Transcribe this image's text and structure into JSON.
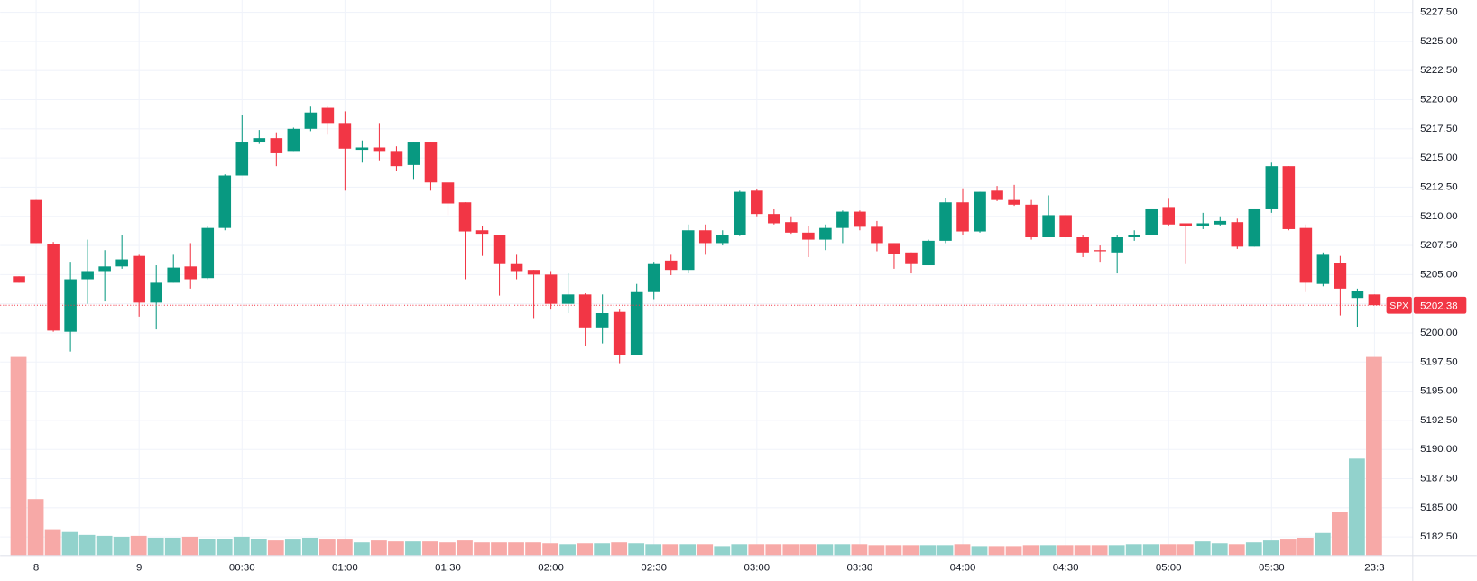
{
  "chart_data": {
    "type": "candlestick",
    "categories": [
      null,
      "8",
      null,
      null,
      null,
      null,
      null,
      "9",
      null,
      null,
      null,
      null,
      null,
      "00:30",
      null,
      null,
      null,
      null,
      null,
      "01:00",
      null,
      null,
      null,
      null,
      null,
      "01:30",
      null,
      null,
      null,
      null,
      null,
      "02:00",
      null,
      null,
      null,
      null,
      null,
      "02:30",
      null,
      null,
      null,
      null,
      null,
      "03:00",
      null,
      null,
      null,
      null,
      null,
      "03:30",
      null,
      null,
      null,
      null,
      null,
      "04:00",
      null,
      null,
      null,
      null,
      null,
      "04:30",
      null,
      null,
      null,
      null,
      null,
      "05:00",
      null,
      null,
      null,
      null,
      null,
      "05:30",
      null,
      null,
      null,
      null,
      null,
      "23:3"
    ],
    "open": [
      5204.85,
      5211.4,
      5207.6,
      5200.1,
      5204.6,
      5205.3,
      5205.7,
      5206.6,
      5202.6,
      5204.3,
      5205.7,
      5204.7,
      5209.0,
      5213.5,
      5216.4,
      5216.7,
      5215.6,
      5217.5,
      5219.3,
      5218.0,
      5215.7,
      5215.9,
      5215.6,
      5214.4,
      5216.4,
      5212.9,
      5211.2,
      5208.8,
      5208.4,
      5205.9,
      5205.4,
      5205.0,
      5202.5,
      5203.3,
      5200.4,
      5201.8,
      5198.1,
      5203.5,
      5206.2,
      5205.4,
      5208.8,
      5207.7,
      5208.4,
      5212.2,
      5210.2,
      5209.5,
      5208.6,
      5208.0,
      5209.0,
      5210.4,
      5209.1,
      5207.7,
      5206.9,
      5205.8,
      5207.9,
      5211.2,
      5208.7,
      5212.2,
      5211.4,
      5211.0,
      5208.2,
      5210.1,
      5208.2,
      5207.1,
      5206.9,
      5208.2,
      5208.4,
      5210.8,
      5209.4,
      5209.2,
      5209.3,
      5209.5,
      5207.4,
      5210.6,
      5214.3,
      5209.0,
      5204.2,
      5206.0,
      5203.0,
      5203.3
    ],
    "high": [
      5204.85,
      5211.4,
      5207.8,
      5206.1,
      5208.0,
      5207.1,
      5208.4,
      5206.7,
      5205.8,
      5206.7,
      5207.7,
      5209.2,
      5213.6,
      5218.7,
      5217.4,
      5217.2,
      5217.6,
      5219.4,
      5219.5,
      5219.0,
      5216.5,
      5218.0,
      5216.0,
      5216.4,
      5216.4,
      5212.9,
      5211.2,
      5209.2,
      5208.4,
      5206.7,
      5205.4,
      5205.3,
      5205.1,
      5203.4,
      5203.3,
      5202.0,
      5204.2,
      5206.1,
      5206.7,
      5209.3,
      5209.3,
      5208.8,
      5212.2,
      5212.3,
      5210.6,
      5210.0,
      5209.2,
      5209.3,
      5210.5,
      5210.5,
      5209.6,
      5207.7,
      5206.9,
      5208.0,
      5211.6,
      5212.4,
      5212.1,
      5212.6,
      5212.7,
      5211.4,
      5211.8,
      5210.1,
      5208.4,
      5207.5,
      5208.4,
      5208.8,
      5210.6,
      5211.5,
      5209.4,
      5210.3,
      5210.0,
      5209.8,
      5210.6,
      5214.6,
      5214.3,
      5209.3,
      5206.9,
      5206.6,
      5203.8,
      5203.3
    ],
    "low": [
      5204.3,
      5207.7,
      5200.1,
      5198.4,
      5202.5,
      5202.7,
      5205.5,
      5201.4,
      5200.3,
      5204.3,
      5203.8,
      5204.6,
      5208.8,
      5213.5,
      5216.2,
      5214.3,
      5215.6,
      5217.3,
      5217.0,
      5212.2,
      5214.6,
      5214.8,
      5213.9,
      5213.2,
      5212.2,
      5210.1,
      5204.6,
      5206.6,
      5203.2,
      5204.6,
      5201.2,
      5202.0,
      5201.7,
      5198.9,
      5199.1,
      5197.4,
      5198.1,
      5202.9,
      5204.95,
      5205.1,
      5206.7,
      5207.5,
      5208.3,
      5210.0,
      5209.3,
      5208.5,
      5206.5,
      5207.1,
      5207.7,
      5208.8,
      5207.0,
      5205.5,
      5205.1,
      5205.8,
      5207.7,
      5208.4,
      5208.6,
      5211.3,
      5210.9,
      5208.0,
      5208.2,
      5208.2,
      5206.5,
      5206.1,
      5205.1,
      5207.9,
      5208.4,
      5209.2,
      5205.9,
      5208.9,
      5209.2,
      5207.2,
      5207.4,
      5210.3,
      5208.8,
      5203.5,
      5204.0,
      5201.5,
      5200.5,
      5202.38
    ],
    "close": [
      5204.3,
      5207.7,
      5200.2,
      5204.6,
      5205.3,
      5205.7,
      5206.3,
      5202.6,
      5204.3,
      5205.6,
      5204.6,
      5209.0,
      5213.5,
      5216.4,
      5216.7,
      5215.4,
      5217.5,
      5218.9,
      5218.0,
      5215.8,
      5215.9,
      5215.6,
      5214.3,
      5216.4,
      5212.9,
      5211.1,
      5208.7,
      5208.5,
      5205.9,
      5205.3,
      5205.0,
      5202.5,
      5203.3,
      5200.4,
      5201.7,
      5198.1,
      5203.5,
      5205.9,
      5205.4,
      5208.8,
      5207.7,
      5208.4,
      5212.1,
      5210.2,
      5209.4,
      5208.6,
      5208.0,
      5209.0,
      5210.4,
      5209.1,
      5207.7,
      5206.8,
      5205.9,
      5207.9,
      5211.2,
      5208.7,
      5212.1,
      5211.4,
      5211.0,
      5208.2,
      5210.1,
      5208.2,
      5206.9,
      5207.0,
      5208.2,
      5208.4,
      5210.6,
      5209.3,
      5209.2,
      5209.4,
      5209.6,
      5207.4,
      5210.6,
      5214.3,
      5208.9,
      5204.3,
      5206.7,
      5203.8,
      5203.6,
      5202.38
    ],
    "volume": [
      211,
      60,
      28,
      25,
      22,
      21,
      20,
      21,
      19,
      19,
      20,
      18,
      18,
      20,
      18,
      16,
      17,
      19,
      17,
      17,
      14,
      16,
      15,
      15,
      15,
      14,
      16,
      14,
      14,
      14,
      14,
      13,
      12,
      13,
      13,
      14,
      13,
      12,
      12,
      12,
      12,
      10,
      12,
      12,
      12,
      12,
      12,
      12,
      12,
      12,
      11,
      11,
      11,
      11,
      11,
      12,
      10,
      10,
      10,
      11,
      11,
      11,
      11,
      11,
      11,
      12,
      12,
      12,
      12,
      15,
      13,
      12,
      14,
      16,
      17,
      19,
      24,
      46,
      103,
      211
    ],
    "up_color": "#089981",
    "down_color": "#f23645",
    "volume_up_color": "#92d2cc",
    "volume_down_color": "#f7a9a7",
    "ylim": [
      5180.9,
      5228.55
    ],
    "yticks": [
      {
        "value": 5182.5,
        "label": "5182.50"
      },
      {
        "value": 5185,
        "label": "5185.00"
      },
      {
        "value": 5187.5,
        "label": "5187.50"
      },
      {
        "value": 5190,
        "label": "5190.00"
      },
      {
        "value": 5192.5,
        "label": "5192.50"
      },
      {
        "value": 5195,
        "label": "5195.00"
      },
      {
        "value": 5197.5,
        "label": "5197.50"
      },
      {
        "value": 5200,
        "label": "5200.00"
      },
      {
        "value": 5202.5,
        "label": "5202.50"
      },
      {
        "value": 5205,
        "label": "5205.00"
      },
      {
        "value": 5207.5,
        "label": "5207.50"
      },
      {
        "value": 5210,
        "label": "5210.00"
      },
      {
        "value": 5212.5,
        "label": "5212.50"
      },
      {
        "value": 5215,
        "label": "5215.00"
      },
      {
        "value": 5217.5,
        "label": "5217.50"
      },
      {
        "value": 5220,
        "label": "5220.00"
      },
      {
        "value": 5222.5,
        "label": "5222.50"
      },
      {
        "value": 5225,
        "label": "5225.00"
      },
      {
        "value": 5227.5,
        "label": "5227.50"
      }
    ],
    "grid": true,
    "last_price": {
      "symbol": "SPX",
      "value": 5202.38
    }
  }
}
